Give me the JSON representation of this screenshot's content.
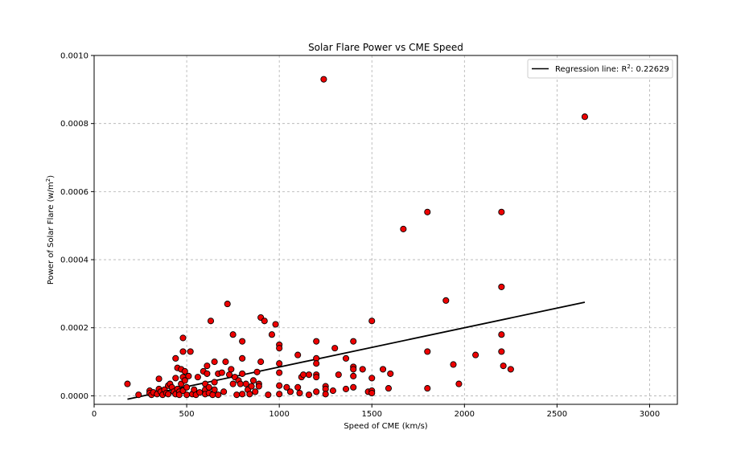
{
  "chart_data": {
    "type": "scatter",
    "title": "Solar Flare Power vs CME Speed",
    "xlabel": "Speed of CME (km/s)",
    "ylabel_prefix": "Power of Solar Flare (w/m",
    "ylabel_sup": "2",
    "ylabel_suffix": ")",
    "xlim": [
      0,
      3150
    ],
    "ylim": [
      -2.5e-05,
      0.001
    ],
    "xticks": [
      0,
      500,
      1000,
      1500,
      2000,
      2500,
      3000
    ],
    "xtick_labels": [
      "0",
      "500",
      "1000",
      "1500",
      "2000",
      "2500",
      "3000"
    ],
    "yticks": [
      0,
      0.0002,
      0.0004,
      0.0006,
      0.0008,
      0.001
    ],
    "ytick_labels": [
      "0.0000",
      "0.0002",
      "0.0004",
      "0.0006",
      "0.0008",
      "0.0010"
    ],
    "grid": true,
    "legend_position": "top-right",
    "marker_color": "#ee0000",
    "marker_edge": "#000000",
    "line_color": "#000000",
    "regression": {
      "label_prefix": "Regression line: R",
      "label_sup": "2",
      "label_suffix": ": 0.22629",
      "x": [
        180,
        2650
      ],
      "y": [
        -1e-05,
        0.000275
      ]
    },
    "points": [
      [
        180,
        3.5e-05
      ],
      [
        240,
        3e-06
      ],
      [
        300,
        1.5e-05
      ],
      [
        300,
        8e-06
      ],
      [
        310,
        3e-06
      ],
      [
        320,
        1e-05
      ],
      [
        340,
        5e-06
      ],
      [
        350,
        2e-05
      ],
      [
        350,
        5e-05
      ],
      [
        360,
        1.2e-05
      ],
      [
        370,
        3e-06
      ],
      [
        380,
        1.8e-05
      ],
      [
        390,
        8e-06
      ],
      [
        400,
        3e-05
      ],
      [
        400,
        5e-06
      ],
      [
        410,
        3.5e-05
      ],
      [
        420,
        2.5e-05
      ],
      [
        430,
        1.2e-05
      ],
      [
        440,
        5.2e-05
      ],
      [
        440,
        5e-06
      ],
      [
        440,
        0.00011
      ],
      [
        450,
        2e-05
      ],
      [
        450,
        8.2e-05
      ],
      [
        460,
        1.2e-05
      ],
      [
        460,
        3e-06
      ],
      [
        470,
        7.8e-05
      ],
      [
        470,
        3.5e-05
      ],
      [
        480,
        0.00017
      ],
      [
        480,
        0.00013
      ],
      [
        480,
        5.5e-05
      ],
      [
        480,
        1.5e-05
      ],
      [
        490,
        7.2e-05
      ],
      [
        490,
        4.5e-05
      ],
      [
        500,
        2.5e-05
      ],
      [
        500,
        3e-06
      ],
      [
        510,
        5.8e-05
      ],
      [
        520,
        0.00013
      ],
      [
        530,
        5e-06
      ],
      [
        540,
        1.8e-05
      ],
      [
        550,
        3e-06
      ],
      [
        560,
        5.5e-05
      ],
      [
        570,
        1e-05
      ],
      [
        590,
        7.2e-05
      ],
      [
        600,
        3.5e-05
      ],
      [
        600,
        1.8e-05
      ],
      [
        600,
        5e-06
      ],
      [
        610,
        8.8e-05
      ],
      [
        610,
        6.5e-05
      ],
      [
        620,
        8e-06
      ],
      [
        620,
        2.5e-05
      ],
      [
        630,
        0.00022
      ],
      [
        640,
        3e-06
      ],
      [
        650,
        0.0001
      ],
      [
        650,
        4e-05
      ],
      [
        650,
        1.8e-05
      ],
      [
        670,
        6.5e-05
      ],
      [
        670,
        3e-06
      ],
      [
        690,
        6.8e-05
      ],
      [
        700,
        1.2e-05
      ],
      [
        710,
        0.0001
      ],
      [
        720,
        0.00027
      ],
      [
        730,
        6.2e-05
      ],
      [
        740,
        7.8e-05
      ],
      [
        750,
        3.5e-05
      ],
      [
        750,
        0.00018
      ],
      [
        760,
        5.5e-05
      ],
      [
        770,
        3e-06
      ],
      [
        780,
        4.5e-05
      ],
      [
        790,
        3.5e-05
      ],
      [
        800,
        0.00016
      ],
      [
        800,
        0.00011
      ],
      [
        800,
        6.5e-05
      ],
      [
        800,
        5e-06
      ],
      [
        820,
        3.5e-05
      ],
      [
        830,
        1.8e-05
      ],
      [
        840,
        5e-06
      ],
      [
        850,
        2.8e-05
      ],
      [
        860,
        4.5e-05
      ],
      [
        870,
        1.2e-05
      ],
      [
        880,
        7e-05
      ],
      [
        890,
        3.5e-05
      ],
      [
        890,
        2.8e-05
      ],
      [
        900,
        0.00023
      ],
      [
        900,
        0.0001
      ],
      [
        920,
        0.00022
      ],
      [
        940,
        3e-06
      ],
      [
        960,
        0.00018
      ],
      [
        980,
        0.00021
      ],
      [
        1000,
        0.00015
      ],
      [
        1000,
        0.00014
      ],
      [
        1000,
        9.5e-05
      ],
      [
        1000,
        6.8e-05
      ],
      [
        1000,
        3e-05
      ],
      [
        1000,
        5e-06
      ],
      [
        1040,
        2.5e-05
      ],
      [
        1060,
        1.2e-05
      ],
      [
        1100,
        0.00012
      ],
      [
        1100,
        2.5e-05
      ],
      [
        1110,
        8e-06
      ],
      [
        1120,
        5.5e-05
      ],
      [
        1130,
        6.2e-05
      ],
      [
        1160,
        6.2e-05
      ],
      [
        1160,
        3e-06
      ],
      [
        1200,
        0.00016
      ],
      [
        1200,
        0.00011
      ],
      [
        1200,
        9.5e-05
      ],
      [
        1200,
        6.2e-05
      ],
      [
        1200,
        5.5e-05
      ],
      [
        1200,
        1.2e-05
      ],
      [
        1240,
        0.00093
      ],
      [
        1250,
        2.8e-05
      ],
      [
        1250,
        2e-05
      ],
      [
        1250,
        5e-06
      ],
      [
        1290,
        1.5e-05
      ],
      [
        1300,
        0.00014
      ],
      [
        1320,
        6.2e-05
      ],
      [
        1360,
        0.00011
      ],
      [
        1360,
        2e-05
      ],
      [
        1400,
        0.00016
      ],
      [
        1400,
        8.5e-05
      ],
      [
        1400,
        7.8e-05
      ],
      [
        1400,
        5.8e-05
      ],
      [
        1400,
        2.5e-05
      ],
      [
        1450,
        7.8e-05
      ],
      [
        1480,
        1.2e-05
      ],
      [
        1500,
        0.00022
      ],
      [
        1500,
        5.2e-05
      ],
      [
        1500,
        1.5e-05
      ],
      [
        1500,
        8e-06
      ],
      [
        1560,
        7.8e-05
      ],
      [
        1590,
        2.2e-05
      ],
      [
        1600,
        6.5e-05
      ],
      [
        1670,
        0.00049
      ],
      [
        1800,
        0.00054
      ],
      [
        1800,
        0.00013
      ],
      [
        1800,
        2.2e-05
      ],
      [
        1900,
        0.00028
      ],
      [
        1940,
        9.2e-05
      ],
      [
        1970,
        3.5e-05
      ],
      [
        2060,
        0.00012
      ],
      [
        2200,
        0.00054
      ],
      [
        2200,
        0.00032
      ],
      [
        2200,
        0.00018
      ],
      [
        2200,
        0.00013
      ],
      [
        2210,
        8.8e-05
      ],
      [
        2250,
        7.8e-05
      ],
      [
        2650,
        0.00082
      ]
    ]
  }
}
